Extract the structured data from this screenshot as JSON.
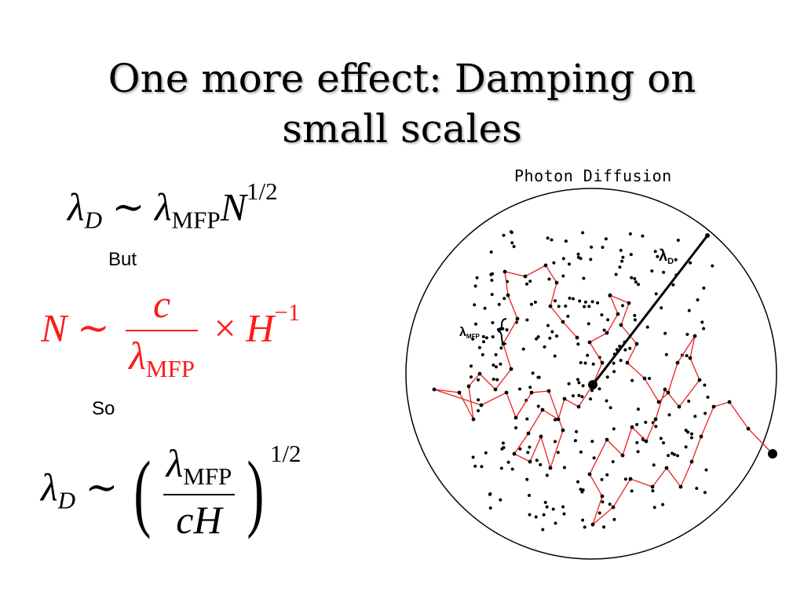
{
  "slide": {
    "title_line1": "One more effect: Damping on",
    "title_line2": "small scales"
  },
  "equations": {
    "eq1": {
      "lhs": "λ",
      "lhs_sub": "D",
      "rel": "∼",
      "rhs": "λ",
      "rhs_sub": "MFP",
      "var": "N",
      "exp": "1/2"
    },
    "but_label": "But",
    "eq2": {
      "lhs": "N",
      "rel": "∼",
      "num": "c",
      "den": "λ",
      "den_sub": "MFP",
      "times": "×",
      "var": "H",
      "exp": "−1"
    },
    "so_label": "So",
    "eq3": {
      "lhs": "λ",
      "lhs_sub": "D",
      "rel": "∼",
      "num": "λ",
      "num_sub": "MFP",
      "den": "cH",
      "exp": "1/2"
    }
  },
  "figure": {
    "title": "Photon Diffusion",
    "label_lambda": "λ",
    "label_d_sub": "D",
    "label_mfp_sub": "MFP",
    "walk_color": "#ee2020",
    "dot_color": "#000000"
  }
}
